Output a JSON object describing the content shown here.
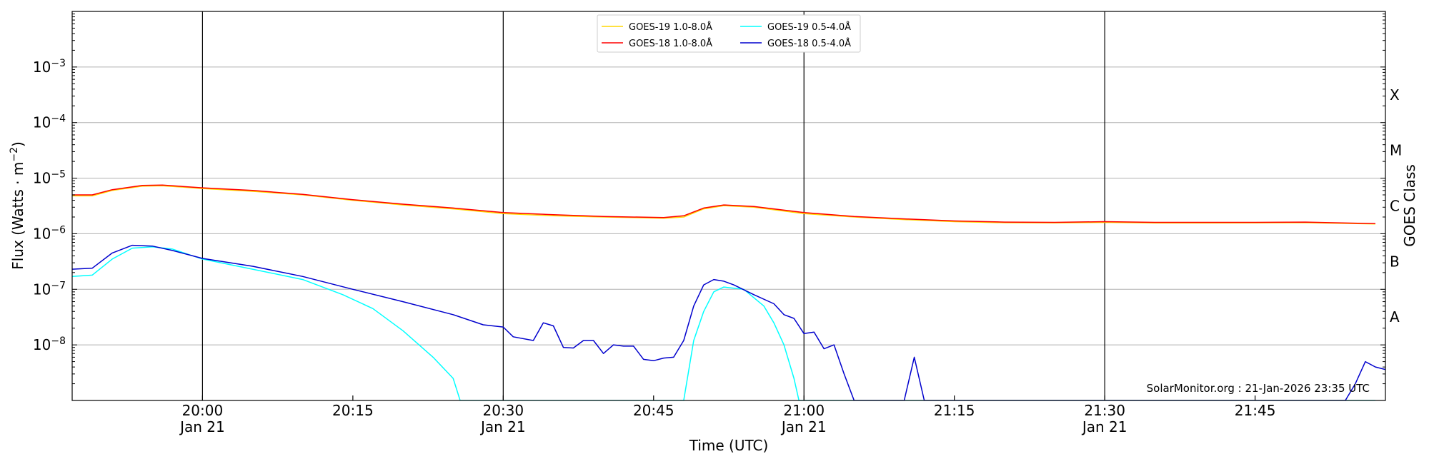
{
  "chart_data": {
    "type": "line",
    "xlabel": "Time (UTC)",
    "ylabel_main": "Flux (Watts · m",
    "ylabel_sup": "−2",
    "ylabel_close": ")",
    "right_ylabel": "GOES Class",
    "credit": "SolarMonitor.org : 21-Jan-2026 23:35 UTC",
    "log_y": true,
    "x_range_minutes": [
      1907,
      2038
    ],
    "y_range": [
      1e-09,
      0.01
    ],
    "x_ticks": [
      {
        "minute": 1920,
        "time": "20:00",
        "date": "Jan 21"
      },
      {
        "minute": 1935,
        "time": "20:15",
        "date": ""
      },
      {
        "minute": 1950,
        "time": "20:30",
        "date": "Jan 21"
      },
      {
        "minute": 1965,
        "time": "20:45",
        "date": ""
      },
      {
        "minute": 1980,
        "time": "21:00",
        "date": "Jan 21"
      },
      {
        "minute": 1995,
        "time": "21:15",
        "date": ""
      },
      {
        "minute": 2010,
        "time": "21:30",
        "date": "Jan 21"
      },
      {
        "minute": 2025,
        "time": "21:45",
        "date": ""
      }
    ],
    "vertical_lines_minutes": [
      1920,
      1950,
      1980,
      2010
    ],
    "y_ticks": [
      {
        "exp": -8,
        "label": "10",
        "sup": "−8"
      },
      {
        "exp": -7,
        "label": "10",
        "sup": "−7"
      },
      {
        "exp": -6,
        "label": "10",
        "sup": "−6"
      },
      {
        "exp": -5,
        "label": "10",
        "sup": "−5"
      },
      {
        "exp": -4,
        "label": "10",
        "sup": "−4"
      },
      {
        "exp": -3,
        "label": "10",
        "sup": "−3"
      }
    ],
    "goes_classes": [
      {
        "label": "A",
        "exp": -7.5
      },
      {
        "label": "B",
        "exp": -6.5
      },
      {
        "label": "C",
        "exp": -5.5
      },
      {
        "label": "M",
        "exp": -4.5
      },
      {
        "label": "X",
        "exp": -3.5
      }
    ],
    "legend_location": "upper-center",
    "series": [
      {
        "name": "GOES-19 1.0-8.0Å",
        "color": "#ffd700",
        "points": [
          [
            1907,
            4.8e-06
          ],
          [
            1909,
            4.8e-06
          ],
          [
            1911,
            6e-06
          ],
          [
            1914,
            7.2e-06
          ],
          [
            1916,
            7.3e-06
          ],
          [
            1920,
            6.5e-06
          ],
          [
            1925,
            5.8e-06
          ],
          [
            1930,
            5e-06
          ],
          [
            1935,
            4e-06
          ],
          [
            1940,
            3.3e-06
          ],
          [
            1945,
            2.8e-06
          ],
          [
            1950,
            2.3e-06
          ],
          [
            1955,
            2.1e-06
          ],
          [
            1960,
            2e-06
          ],
          [
            1966,
            1.9e-06
          ],
          [
            1968,
            2e-06
          ],
          [
            1970,
            2.8e-06
          ],
          [
            1972,
            3.2e-06
          ],
          [
            1975,
            3e-06
          ],
          [
            1980,
            2.3e-06
          ],
          [
            1985,
            2e-06
          ],
          [
            1990,
            1.8e-06
          ],
          [
            1995,
            1.65e-06
          ],
          [
            2000,
            1.58e-06
          ],
          [
            2005,
            1.57e-06
          ],
          [
            2010,
            1.6e-06
          ],
          [
            2015,
            1.56e-06
          ],
          [
            2020,
            1.56e-06
          ],
          [
            2025,
            1.57e-06
          ],
          [
            2030,
            1.58e-06
          ],
          [
            2037,
            1.5e-06
          ]
        ]
      },
      {
        "name": "GOES-18 1.0-8.0Å",
        "color": "#ff0000",
        "points": [
          [
            1907,
            5e-06
          ],
          [
            1909,
            5e-06
          ],
          [
            1911,
            6.2e-06
          ],
          [
            1914,
            7.4e-06
          ],
          [
            1916,
            7.5e-06
          ],
          [
            1920,
            6.7e-06
          ],
          [
            1925,
            6e-06
          ],
          [
            1930,
            5.1e-06
          ],
          [
            1935,
            4.1e-06
          ],
          [
            1940,
            3.4e-06
          ],
          [
            1945,
            2.9e-06
          ],
          [
            1950,
            2.4e-06
          ],
          [
            1955,
            2.2e-06
          ],
          [
            1960,
            2.05e-06
          ],
          [
            1966,
            1.95e-06
          ],
          [
            1968,
            2.1e-06
          ],
          [
            1970,
            2.9e-06
          ],
          [
            1972,
            3.3e-06
          ],
          [
            1975,
            3.1e-06
          ],
          [
            1980,
            2.4e-06
          ],
          [
            1985,
            2.05e-06
          ],
          [
            1990,
            1.85e-06
          ],
          [
            1995,
            1.7e-06
          ],
          [
            2000,
            1.62e-06
          ],
          [
            2005,
            1.6e-06
          ],
          [
            2010,
            1.65e-06
          ],
          [
            2015,
            1.6e-06
          ],
          [
            2020,
            1.6e-06
          ],
          [
            2025,
            1.6e-06
          ],
          [
            2030,
            1.62e-06
          ],
          [
            2037,
            1.52e-06
          ]
        ]
      },
      {
        "name": "GOES-19 0.5-4.0Å",
        "color": "#00ffff",
        "points": [
          [
            1907,
            1.7e-07
          ],
          [
            1909,
            1.8e-07
          ],
          [
            1911,
            3.5e-07
          ],
          [
            1913,
            5.5e-07
          ],
          [
            1915,
            5.8e-07
          ],
          [
            1917,
            5.3e-07
          ],
          [
            1920,
            3.5e-07
          ],
          [
            1925,
            2.3e-07
          ],
          [
            1930,
            1.5e-07
          ],
          [
            1934,
            8e-08
          ],
          [
            1937,
            4.5e-08
          ],
          [
            1940,
            1.8e-08
          ],
          [
            1943,
            6e-09
          ],
          [
            1945,
            2.5e-09
          ],
          [
            1945.7,
            1e-09
          ],
          [
            1968,
            1e-09
          ],
          [
            1969,
            1.2e-08
          ],
          [
            1970,
            4e-08
          ],
          [
            1971,
            9e-08
          ],
          [
            1972,
            1.1e-07
          ],
          [
            1974,
            1e-07
          ],
          [
            1976,
            5e-08
          ],
          [
            1977,
            2.5e-08
          ],
          [
            1978,
            1e-08
          ],
          [
            1979,
            2.5e-09
          ],
          [
            1979.5,
            1e-09
          ],
          [
            2037,
            1e-09
          ]
        ]
      },
      {
        "name": "GOES-18 0.5-4.0Å",
        "color": "#0000cd",
        "points": [
          [
            1907,
            2.3e-07
          ],
          [
            1909,
            2.4e-07
          ],
          [
            1911,
            4.5e-07
          ],
          [
            1913,
            6.2e-07
          ],
          [
            1915,
            6e-07
          ],
          [
            1917,
            5e-07
          ],
          [
            1920,
            3.6e-07
          ],
          [
            1925,
            2.6e-07
          ],
          [
            1930,
            1.7e-07
          ],
          [
            1935,
            1e-07
          ],
          [
            1940,
            6e-08
          ],
          [
            1945,
            3.5e-08
          ],
          [
            1948,
            2.3e-08
          ],
          [
            1950,
            2.1e-08
          ],
          [
            1951,
            1.4e-08
          ],
          [
            1953,
            1.2e-08
          ],
          [
            1954,
            2.5e-08
          ],
          [
            1955,
            2.2e-08
          ],
          [
            1956,
            9e-09
          ],
          [
            1957,
            8.8e-09
          ],
          [
            1958,
            1.2e-08
          ],
          [
            1959,
            1.2e-08
          ],
          [
            1960,
            7e-09
          ],
          [
            1961,
            1e-08
          ],
          [
            1962,
            9.5e-09
          ],
          [
            1963,
            9.5e-09
          ],
          [
            1964,
            5.5e-09
          ],
          [
            1965,
            5.2e-09
          ],
          [
            1966,
            5.8e-09
          ],
          [
            1967,
            6e-09
          ],
          [
            1968,
            1.2e-08
          ],
          [
            1969,
            5e-08
          ],
          [
            1970,
            1.2e-07
          ],
          [
            1971,
            1.5e-07
          ],
          [
            1972,
            1.4e-07
          ],
          [
            1973,
            1.2e-07
          ],
          [
            1975,
            8e-08
          ],
          [
            1977,
            5.5e-08
          ],
          [
            1978,
            3.5e-08
          ],
          [
            1979,
            3e-08
          ],
          [
            1980,
            1.6e-08
          ],
          [
            1981,
            1.7e-08
          ],
          [
            1982,
            8.5e-09
          ],
          [
            1983,
            1e-08
          ],
          [
            1984,
            3e-09
          ],
          [
            1985,
            1e-09
          ],
          [
            1990,
            1e-09
          ],
          [
            1991,
            6e-09
          ],
          [
            1992,
            1e-09
          ],
          [
            2034,
            1e-09
          ],
          [
            2035,
            2e-09
          ],
          [
            2036,
            5e-09
          ],
          [
            2037,
            4e-09
          ],
          [
            2038,
            3.6e-09
          ],
          [
            2039,
            1.5e-09
          ],
          [
            2040,
            1e-09
          ],
          [
            2041,
            1e-09
          ]
        ]
      }
    ]
  }
}
